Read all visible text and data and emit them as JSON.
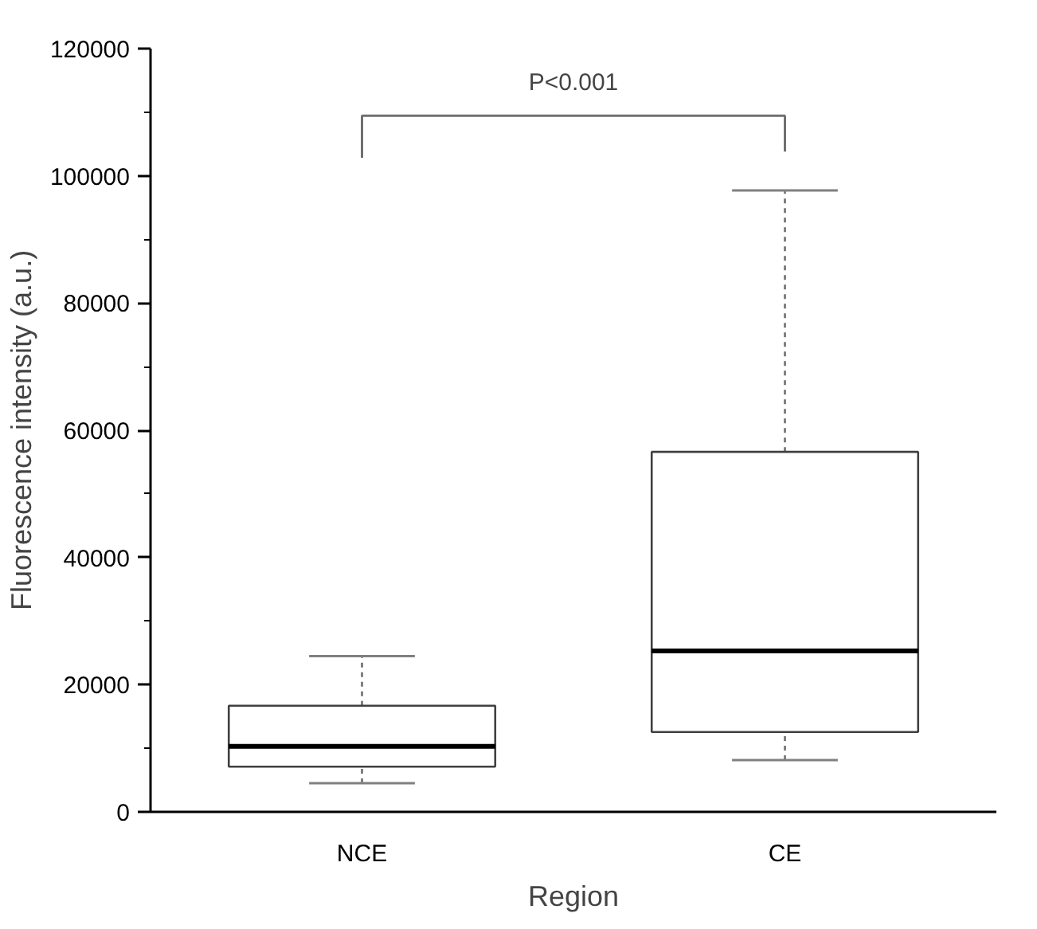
{
  "chart_data": {
    "type": "box",
    "xlabel": "Region",
    "ylabel": "Fluorescence intensity (a.u.)",
    "categories": [
      "NCE",
      "CE"
    ],
    "boxes": [
      {
        "low": 4500,
        "q1": 7100,
        "median": 10300,
        "q3": 16700,
        "high": 24500
      },
      {
        "low": 8150,
        "q1": 12550,
        "median": 25300,
        "q3": 56600,
        "high": 97700
      }
    ],
    "ylim": [
      0,
      120000
    ],
    "yticks": [
      0,
      20000,
      40000,
      60000,
      80000,
      100000,
      120000
    ],
    "annotations": [
      "P<0.001"
    ],
    "grid": false
  }
}
